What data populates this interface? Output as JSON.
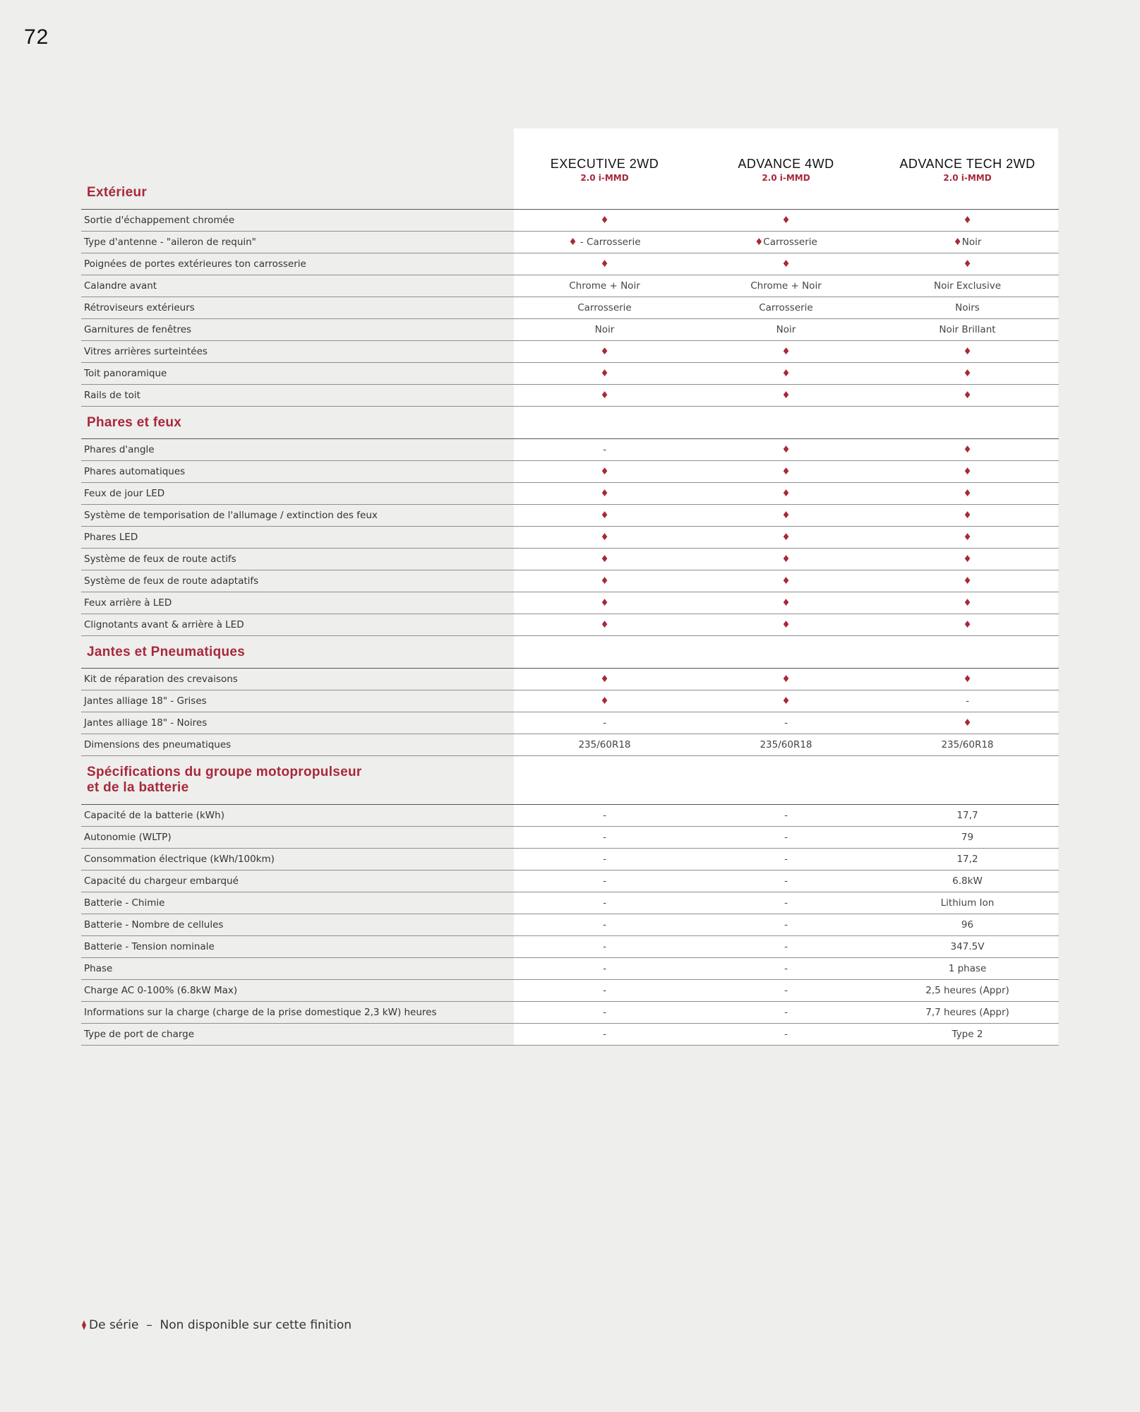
{
  "page_number": "72",
  "columns": [
    {
      "name": "EXECUTIVE 2WD",
      "sub": "2.0 i-MMD"
    },
    {
      "name": "ADVANCE 4WD",
      "sub": "2.0 i-MMD"
    },
    {
      "name": "ADVANCE TECH 2WD",
      "sub": "2.0 i-MMD"
    }
  ],
  "sections": [
    {
      "title": "Extérieur",
      "rows": [
        {
          "label": "Sortie d'échappement chromée",
          "cells": [
            "♦",
            "♦",
            "♦"
          ]
        },
        {
          "label": "Type d'antenne - \"aileron de requin\"",
          "cells": [
            "♦ - Carrosserie",
            "♦Carrosserie",
            "♦Noir"
          ]
        },
        {
          "label": "Poignées de portes extérieures ton carrosserie",
          "cells": [
            "♦",
            "♦",
            "♦"
          ]
        },
        {
          "label": "Calandre avant",
          "cells": [
            "Chrome + Noir",
            "Chrome + Noir",
            "Noir Exclusive"
          ]
        },
        {
          "label": "Rétroviseurs extérieurs",
          "cells": [
            "Carrosserie",
            "Carrosserie",
            "Noirs"
          ]
        },
        {
          "label": "Garnitures de fenêtres",
          "cells": [
            "Noir",
            "Noir",
            "Noir Brillant"
          ]
        },
        {
          "label": "Vitres arrières surteintées",
          "cells": [
            "♦",
            "♦",
            "♦"
          ]
        },
        {
          "label": "Toit panoramique",
          "cells": [
            "♦",
            "♦",
            "♦"
          ]
        },
        {
          "label": "Rails de toit",
          "cells": [
            "♦",
            "♦",
            "♦"
          ]
        }
      ]
    },
    {
      "title": "Phares et feux",
      "rows": [
        {
          "label": "Phares d'angle",
          "cells": [
            "-",
            "♦",
            "♦"
          ]
        },
        {
          "label": "Phares automatiques",
          "cells": [
            "♦",
            "♦",
            "♦"
          ]
        },
        {
          "label": "Feux de jour LED",
          "cells": [
            "♦",
            "♦",
            "♦"
          ]
        },
        {
          "label": "Système de temporisation de l'allumage / extinction des feux",
          "cells": [
            "♦",
            "♦",
            "♦"
          ]
        },
        {
          "label": "Phares LED",
          "cells": [
            "♦",
            "♦",
            "♦"
          ]
        },
        {
          "label": "Système de feux de route actifs",
          "cells": [
            "♦",
            "♦",
            "♦"
          ]
        },
        {
          "label": "Système de feux de route adaptatifs",
          "cells": [
            "♦",
            "♦",
            "♦"
          ]
        },
        {
          "label": "Feux arrière à LED",
          "cells": [
            "♦",
            "♦",
            "♦"
          ]
        },
        {
          "label": "Clignotants avant & arrière à LED",
          "cells": [
            "♦",
            "♦",
            "♦"
          ]
        }
      ]
    },
    {
      "title": "Jantes et Pneumatiques",
      "rows": [
        {
          "label": "Kit de réparation des crevaisons",
          "cells": [
            "♦",
            "♦",
            "♦"
          ]
        },
        {
          "label": "Jantes alliage 18\" - Grises",
          "cells": [
            "♦",
            "♦",
            "-"
          ]
        },
        {
          "label": "Jantes alliage 18\" - Noires",
          "cells": [
            "-",
            "-",
            "♦"
          ]
        },
        {
          "label": "Dimensions des pneumatiques",
          "cells": [
            "235/60R18",
            "235/60R18",
            "235/60R18"
          ]
        }
      ]
    },
    {
      "title": "Spécifications du groupe motopropulseur\net de la batterie",
      "rows": [
        {
          "label": "Capacité de la batterie (kWh)",
          "cells": [
            "-",
            "-",
            "17,7"
          ]
        },
        {
          "label": "Autonomie (WLTP)",
          "cells": [
            "-",
            "-",
            "79"
          ]
        },
        {
          "label": "Consommation électrique (kWh/100km)",
          "cells": [
            "-",
            "-",
            "17,2"
          ]
        },
        {
          "label": "Capacité du chargeur embarqué",
          "cells": [
            "-",
            "-",
            "6.8kW"
          ]
        },
        {
          "label": "Batterie - Chimie",
          "cells": [
            "-",
            "-",
            "Lithium Ion"
          ]
        },
        {
          "label": "Batterie - Nombre de cellules",
          "cells": [
            "-",
            "-",
            "96"
          ]
        },
        {
          "label": "Batterie - Tension nominale",
          "cells": [
            "-",
            "-",
            "347.5V"
          ]
        },
        {
          "label": "Phase",
          "cells": [
            "-",
            "-",
            "1 phase"
          ]
        },
        {
          "label": "Charge AC 0-100% (6.8kW Max)",
          "cells": [
            "-",
            "-",
            "2,5 heures (Appr)"
          ]
        },
        {
          "label": "Informations sur la charge (charge de la prise domestique 2,3 kW) heures",
          "cells": [
            "-",
            "-",
            "7,7 heures (Appr)"
          ]
        },
        {
          "label": "Type de port de charge",
          "cells": [
            "-",
            "-",
            "Type 2"
          ]
        }
      ]
    }
  ],
  "legend": "De série  –  Non disponible sur cette finition"
}
